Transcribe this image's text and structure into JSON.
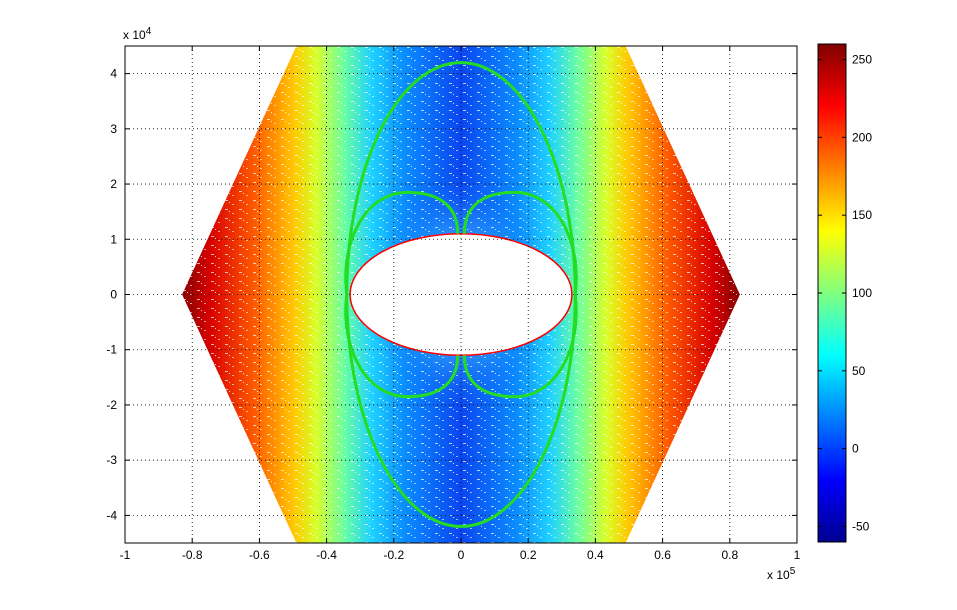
{
  "chart_data": {
    "type": "heatmap",
    "title": "",
    "xlabel": "",
    "ylabel": "",
    "xlim": [
      -1.0,
      1.0
    ],
    "ylim": [
      -4.5,
      4.5
    ],
    "x_multiplier": "x 10",
    "x_exponent": "5",
    "y_multiplier": "x 10",
    "y_exponent": "4",
    "x_ticks": [
      "-1",
      "-0.8",
      "-0.6",
      "-0.4",
      "-0.2",
      "0",
      "0.2",
      "0.4",
      "0.6",
      "0.8",
      "1"
    ],
    "y_ticks": [
      "4",
      "3",
      "2",
      "1",
      "0",
      "-1",
      "-2",
      "-3",
      "-4"
    ],
    "grid": true,
    "colormap": "jet",
    "colorbar": {
      "min": -60,
      "max": 260,
      "ticks": [
        "250",
        "200",
        "150",
        "100",
        "50",
        "0",
        "-50"
      ],
      "tick_values": [
        250,
        200,
        150,
        100,
        50,
        0,
        -50
      ]
    },
    "hole": {
      "shape": "ellipse",
      "semi_axis_x": 0.33,
      "semi_axis_y": 1.1,
      "edge_color": "#ff0000"
    },
    "outer_boundary": [
      [
        -0.49,
        4.5
      ],
      [
        0.49,
        4.5
      ],
      [
        0.83,
        0.0
      ],
      [
        0.49,
        -4.5
      ],
      [
        -0.49,
        -4.5
      ],
      [
        -0.83,
        0.0
      ]
    ],
    "overlay_curves": {
      "color": "#22dd22",
      "outer_ellipse": {
        "semi_axis_x": 0.34,
        "semi_axis_y": 4.2
      },
      "lobes_peak_y": 1.85,
      "lobes_center_x": 0.16
    }
  }
}
